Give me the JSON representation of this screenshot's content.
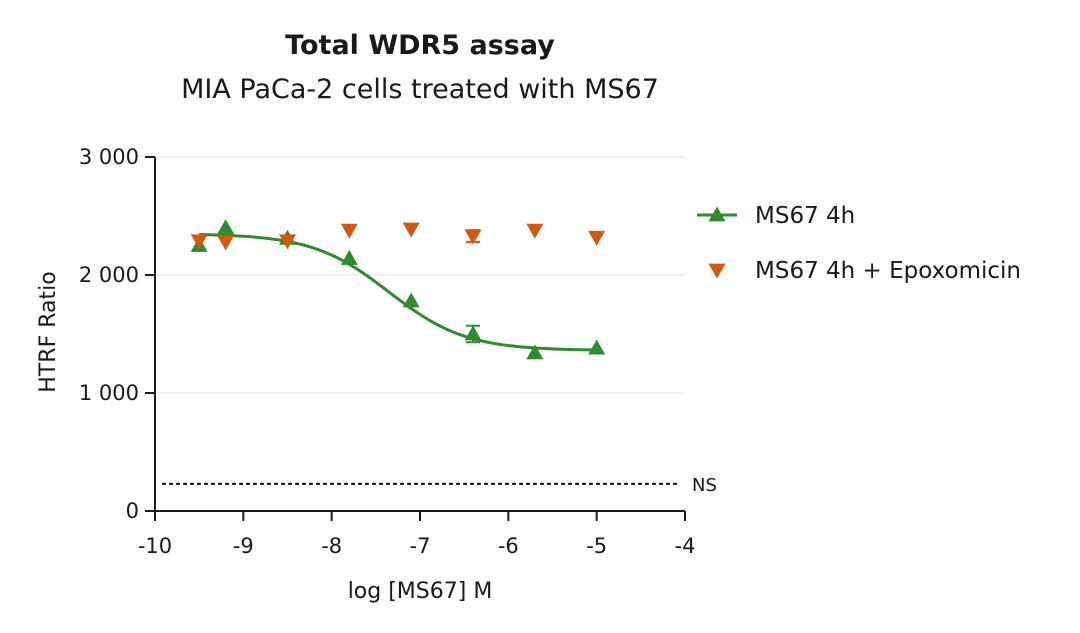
{
  "chart_data": {
    "type": "scatter",
    "title": "Total WDR5 assay",
    "subtitle": "MIA PaCa-2 cells treated with MS67",
    "xlabel": "log [MS67] M",
    "ylabel": "HTRF Ratio",
    "xlim": [
      -10,
      -4
    ],
    "ylim": [
      0,
      3000
    ],
    "x_ticks": [
      -10,
      -9,
      -8,
      -7,
      -6,
      -5,
      -4
    ],
    "x_tick_labels": [
      "-10",
      "-9",
      "-8",
      "-7",
      "-6",
      "-5",
      "-4"
    ],
    "y_ticks": [
      0,
      1000,
      2000,
      3000
    ],
    "y_tick_labels": [
      "0",
      "1 000",
      "2 000",
      "3 000"
    ],
    "grid": "horizontal",
    "legend_position": "right",
    "reference_line": {
      "label": "NS",
      "y": 230,
      "style": "dotted"
    },
    "series": [
      {
        "name": "MS67 4h",
        "color": "#2e8b2e",
        "marker": "triangle-up",
        "fit_curve": {
          "model": "four-parameter logistic",
          "top": 2350,
          "bottom": 1360,
          "log_ec50": -7.35,
          "hill_slope": -1.0,
          "x_range": [
            -9.5,
            -5
          ]
        },
        "points": [
          {
            "x": -9.5,
            "y": 2250
          },
          {
            "x": -9.2,
            "y": 2400
          },
          {
            "x": -8.5,
            "y": 2310
          },
          {
            "x": -7.8,
            "y": 2140
          },
          {
            "x": -7.1,
            "y": 1780
          },
          {
            "x": -6.4,
            "y": 1500,
            "err": 70
          },
          {
            "x": -5.7,
            "y": 1340
          },
          {
            "x": -5.0,
            "y": 1380
          }
        ]
      },
      {
        "name": "MS67 4h + Epoxomicin",
        "color": "#d4580f",
        "marker": "triangle-down",
        "points": [
          {
            "x": -9.5,
            "y": 2290
          },
          {
            "x": -9.2,
            "y": 2280
          },
          {
            "x": -8.5,
            "y": 2290
          },
          {
            "x": -7.8,
            "y": 2380
          },
          {
            "x": -7.1,
            "y": 2390
          },
          {
            "x": -6.4,
            "y": 2330,
            "err": 50
          },
          {
            "x": -5.7,
            "y": 2380
          },
          {
            "x": -5.0,
            "y": 2320
          }
        ]
      }
    ]
  }
}
